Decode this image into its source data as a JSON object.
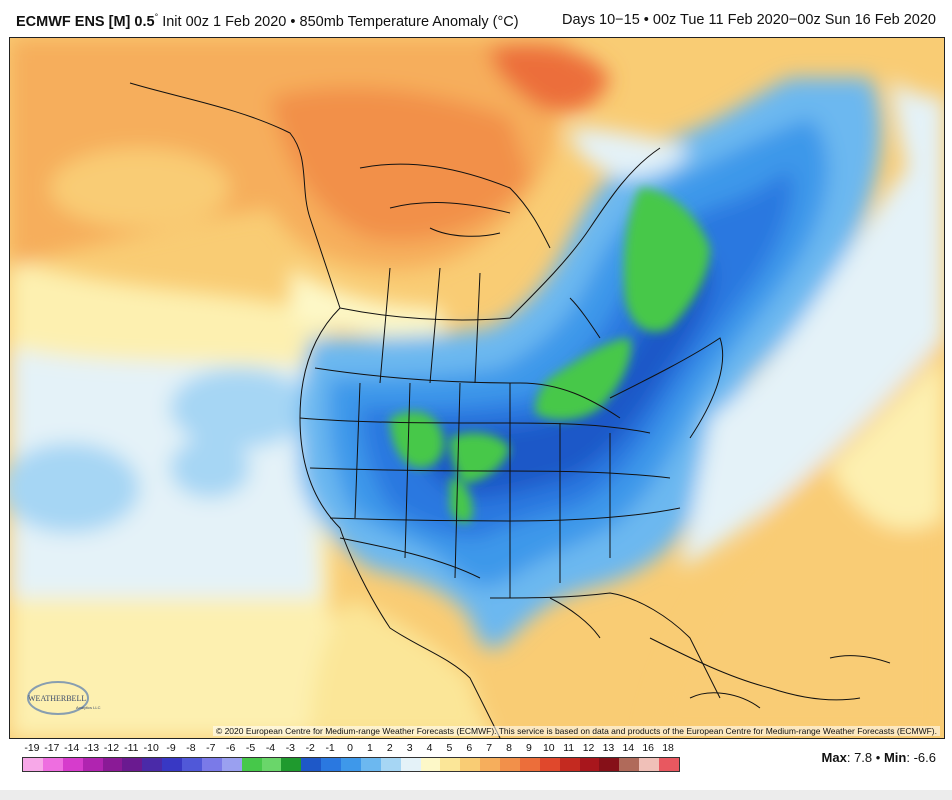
{
  "header": {
    "model": "ECMWF ENS [M] 0.5",
    "degree": "°",
    "init": "Init 00z 1 Feb 2020",
    "bullet": "•",
    "field": "850mb Temperature Anomaly (°C)",
    "valid": "Days 10−15 • 00z Tue 11 Feb 2020−00z Sun 16 Feb 2020"
  },
  "map": {
    "copyright": "© 2020 European Centre for Medium-range Weather Forecasts (ECMWF). This service is based on data and products of the European Centre for Medium-range Weather Forecasts (ECMWF).",
    "logo_text": "WEATHERBELL",
    "logo_sub": "Analytics LLC"
  },
  "legend": {
    "labels": [
      "-19",
      "-17",
      "-14",
      "-13",
      "-12",
      "-11",
      "-10",
      "-9",
      "-8",
      "-7",
      "-6",
      "-5",
      "-4",
      "-3",
      "-2",
      "-1",
      "0",
      "1",
      "2",
      "3",
      "4",
      "5",
      "6",
      "7",
      "8",
      "9",
      "10",
      "11",
      "12",
      "13",
      "14",
      "16",
      "18"
    ],
    "colors": [
      "#f7a8e8",
      "#ee6ee0",
      "#d63ccc",
      "#b024b0",
      "#8a1a96",
      "#6a1a90",
      "#4a2aa8",
      "#3838c4",
      "#5058d8",
      "#7a7ae8",
      "#9aa0f0",
      "#46c84a",
      "#6ad66a",
      "#1f9a2e",
      "#1e58c8",
      "#2a78e0",
      "#3e98ea",
      "#6cb8f0",
      "#a6d6f4",
      "#e4f2f8",
      "#fdf8c8",
      "#fbe698",
      "#f9cc74",
      "#f6ae5c",
      "#f2904a",
      "#ec6e3a",
      "#e0482c",
      "#c42a20",
      "#a8161c",
      "#861018",
      "#b06a5a",
      "#f0c0b8",
      "#e85860"
    ],
    "max_label": "Max",
    "max_value": "7.8",
    "separator": "•",
    "min_label": "Min",
    "min_value": "-6.6"
  }
}
